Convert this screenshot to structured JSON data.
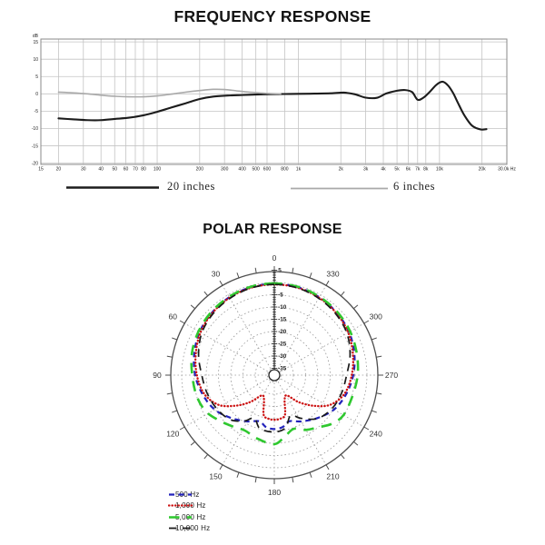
{
  "chart_data": [
    {
      "type": "line",
      "title": "FREQUENCY RESPONSE",
      "x_scale": "log",
      "x_unit": "Hz",
      "ylabel": "dB",
      "xlim": [
        15,
        30000
      ],
      "ylim": [
        -20.5,
        16.5
      ],
      "grid": true,
      "y_ticks": [
        [
          15,
          "15"
        ],
        [
          10,
          "10"
        ],
        [
          5,
          "5"
        ],
        [
          0,
          "0"
        ],
        [
          -5,
          "-5"
        ],
        [
          -10,
          "-10"
        ],
        [
          -15,
          "-15"
        ],
        [
          -20,
          "-20"
        ]
      ],
      "x_gridlines": [
        20,
        30,
        40,
        50,
        60,
        70,
        80,
        100,
        200,
        300,
        400,
        500,
        600,
        800,
        1000,
        2000,
        3000,
        4000,
        5000,
        6000,
        7000,
        8000,
        10000,
        20000
      ],
      "x_tick_labels": [
        [
          15,
          "15"
        ],
        [
          20,
          "20"
        ],
        [
          30,
          "30"
        ],
        [
          40,
          "40"
        ],
        [
          50,
          "50"
        ],
        [
          60,
          "60"
        ],
        [
          70,
          "70"
        ],
        [
          80,
          "80"
        ],
        [
          100,
          "100"
        ],
        [
          200,
          "200"
        ],
        [
          300,
          "300"
        ],
        [
          400,
          "400"
        ],
        [
          500,
          "500"
        ],
        [
          600,
          "600"
        ],
        [
          800,
          "800"
        ],
        [
          1000,
          "1k"
        ],
        [
          2000,
          "2k"
        ],
        [
          3000,
          "3k"
        ],
        [
          4000,
          "4k"
        ],
        [
          5000,
          "5k"
        ],
        [
          6000,
          "6k"
        ],
        [
          7000,
          "7k"
        ],
        [
          8000,
          "8k"
        ],
        [
          10000,
          "10k"
        ],
        [
          20000,
          "20k"
        ],
        [
          30000,
          "30.0k Hz"
        ]
      ],
      "colors": {
        "grid": "#c4c4c4",
        "frame": "#8a8a8a",
        "tick_text": "#222222"
      },
      "legend_position": "below",
      "series": [
        {
          "name": "20 inches",
          "color": "#1c1c1c",
          "width": 2.1,
          "points": [
            [
              20,
              -7.1
            ],
            [
              25,
              -7.35
            ],
            [
              32,
              -7.6
            ],
            [
              40,
              -7.6
            ],
            [
              50,
              -7.25
            ],
            [
              63,
              -6.9
            ],
            [
              80,
              -6.2
            ],
            [
              100,
              -5.2
            ],
            [
              125,
              -4.0
            ],
            [
              160,
              -2.7
            ],
            [
              200,
              -1.5
            ],
            [
              250,
              -0.8
            ],
            [
              315,
              -0.5
            ],
            [
              400,
              -0.35
            ],
            [
              500,
              -0.2
            ],
            [
              630,
              -0.1
            ],
            [
              800,
              -0.05
            ],
            [
              1000,
              0
            ],
            [
              1300,
              0.05
            ],
            [
              1700,
              0.15
            ],
            [
              2100,
              0.35
            ],
            [
              2500,
              -0.1
            ],
            [
              3000,
              -1.1
            ],
            [
              3600,
              -1.15
            ],
            [
              4200,
              0.1
            ],
            [
              5000,
              0.9
            ],
            [
              5700,
              1.1
            ],
            [
              6400,
              0.5
            ],
            [
              7000,
              -1.7
            ],
            [
              7700,
              -1.1
            ],
            [
              8500,
              0.5
            ],
            [
              9500,
              2.6
            ],
            [
              10500,
              3.5
            ],
            [
              11500,
              2.4
            ],
            [
              12500,
              0.2
            ],
            [
              13500,
              -2.6
            ],
            [
              15000,
              -6.2
            ],
            [
              17000,
              -9.2
            ],
            [
              19500,
              -10.3
            ],
            [
              21500,
              -10.2
            ]
          ]
        },
        {
          "name": "6 inches",
          "color": "#a9a9a9",
          "width": 1.6,
          "points": [
            [
              20,
              0.5
            ],
            [
              25,
              0.3
            ],
            [
              32,
              0.0
            ],
            [
              40,
              -0.4
            ],
            [
              50,
              -0.7
            ],
            [
              63,
              -0.85
            ],
            [
              80,
              -0.85
            ],
            [
              100,
              -0.6
            ],
            [
              125,
              -0.1
            ],
            [
              160,
              0.5
            ],
            [
              200,
              0.95
            ],
            [
              250,
              1.3
            ],
            [
              300,
              1.25
            ],
            [
              360,
              0.9
            ],
            [
              430,
              0.55
            ],
            [
              520,
              0.3
            ],
            [
              620,
              0.1
            ],
            [
              750,
              0.0
            ]
          ]
        }
      ]
    },
    {
      "type": "polar",
      "title": "POLAR RESPONSE",
      "radial_unit": "dB",
      "outer_db": 5,
      "center_db": -38.8,
      "ring_dbs": [
        0,
        -5,
        -10,
        -15,
        -20,
        -25,
        -30,
        -35
      ],
      "radial_tick_labels": [
        [
          5,
          "5"
        ],
        [
          -5,
          "-5"
        ],
        [
          -10,
          "-10"
        ],
        [
          -15,
          "-15"
        ],
        [
          -20,
          "-20"
        ],
        [
          -25,
          "-25"
        ],
        [
          -30,
          "-30"
        ],
        [
          -35,
          "-35"
        ]
      ],
      "angle_labels": [
        [
          0,
          "0"
        ],
        [
          30,
          "30"
        ],
        [
          60,
          "60"
        ],
        [
          90,
          "90"
        ],
        [
          120,
          "120"
        ],
        [
          150,
          "150"
        ],
        [
          180,
          "180"
        ],
        [
          210,
          "210"
        ],
        [
          240,
          "240"
        ],
        [
          270,
          "270"
        ],
        [
          300,
          "300"
        ],
        [
          330,
          "330"
        ]
      ],
      "angle_tick_step": 10,
      "radial_line_step": 30,
      "colors": {
        "grid": "#9a9a9a",
        "circle": "#4d4d4d",
        "axis": "#222222",
        "label_text": "#333333"
      },
      "series": [
        {
          "name": "500 Hz",
          "color": "#2222bb",
          "dash": "6 4.5",
          "width": 2.2,
          "cap": "butt",
          "points": [
            [
              0,
              -0.6
            ],
            [
              15,
              -0.7
            ],
            [
              30,
              -1.1
            ],
            [
              45,
              -1.8
            ],
            [
              60,
              -2.6
            ],
            [
              75,
              -4.0
            ],
            [
              90,
              -5.5
            ],
            [
              105,
              -7.5
            ],
            [
              120,
              -9.7
            ],
            [
              135,
              -13.0
            ],
            [
              150,
              -16.0
            ],
            [
              162,
              -18.0
            ],
            [
              171,
              -16.3
            ],
            [
              180,
              -15.8
            ],
            [
              189,
              -16.3
            ],
            [
              198,
              -18.0
            ],
            [
              210,
              -16.0
            ],
            [
              225,
              -13.0
            ],
            [
              240,
              -9.7
            ],
            [
              255,
              -7.5
            ],
            [
              270,
              -5.6
            ],
            [
              285,
              -4.0
            ],
            [
              300,
              -2.6
            ],
            [
              315,
              -1.8
            ],
            [
              330,
              -1.1
            ],
            [
              345,
              -0.7
            ]
          ]
        },
        {
          "name": "1,000 Hz",
          "color": "#cc1212",
          "dash": "0.4 3.1",
          "width": 2.3,
          "cap": "round",
          "points": [
            [
              0,
              -0.8
            ],
            [
              15,
              -0.9
            ],
            [
              30,
              -1.3
            ],
            [
              45,
              -2.0
            ],
            [
              60,
              -3.0
            ],
            [
              75,
              -4.6
            ],
            [
              90,
              -6.2
            ],
            [
              105,
              -8.2
            ],
            [
              118,
              -12.0
            ],
            [
              128,
              -17.5
            ],
            [
              138,
              -23.0
            ],
            [
              148,
              -28.0
            ],
            [
              157,
              -27.0
            ],
            [
              165,
              -21.0
            ],
            [
              173,
              -19.8
            ],
            [
              180,
              -19.6
            ],
            [
              187,
              -19.8
            ],
            [
              195,
              -21.0
            ],
            [
              203,
              -27.0
            ],
            [
              212,
              -28.0
            ],
            [
              222,
              -23.0
            ],
            [
              232,
              -17.5
            ],
            [
              242,
              -12.0
            ],
            [
              255,
              -8.2
            ],
            [
              270,
              -6.2
            ],
            [
              285,
              -4.6
            ],
            [
              300,
              -3.0
            ],
            [
              315,
              -2.0
            ],
            [
              330,
              -1.3
            ],
            [
              345,
              -0.9
            ]
          ]
        },
        {
          "name": "5,000 Hz",
          "color": "#2fc82f",
          "dash": "11.5 8.5",
          "width": 2.6,
          "cap": "butt",
          "points": [
            [
              0,
              -0.4
            ],
            [
              15,
              -0.5
            ],
            [
              30,
              -0.9
            ],
            [
              45,
              -1.4
            ],
            [
              60,
              -2.1
            ],
            [
              75,
              -3.0
            ],
            [
              90,
              -4.3
            ],
            [
              105,
              -5.0
            ],
            [
              118,
              -6.2
            ],
            [
              130,
              -8.8
            ],
            [
              142,
              -11.0
            ],
            [
              152,
              -12.2
            ],
            [
              165,
              -11.0
            ],
            [
              180,
              -9.6
            ],
            [
              190,
              -12.5
            ],
            [
              200,
              -14.5
            ],
            [
              210,
              -12.0
            ],
            [
              220,
              -10.0
            ],
            [
              230,
              -7.0
            ],
            [
              240,
              -5.2
            ],
            [
              255,
              -4.8
            ],
            [
              270,
              -3.8
            ],
            [
              285,
              -3.0
            ],
            [
              300,
              -2.1
            ],
            [
              315,
              -1.4
            ],
            [
              330,
              -0.9
            ],
            [
              345,
              -0.5
            ]
          ]
        },
        {
          "name": "10,000 Hz",
          "color": "#1a1a1a",
          "dash": "8.5 6.5",
          "width": 1.7,
          "cap": "butt",
          "points": [
            [
              0,
              -0.8
            ],
            [
              15,
              -1.0
            ],
            [
              30,
              -1.6
            ],
            [
              45,
              -2.4
            ],
            [
              60,
              -3.6
            ],
            [
              75,
              -5.8
            ],
            [
              90,
              -8.2
            ],
            [
              105,
              -9.4
            ],
            [
              120,
              -10.6
            ],
            [
              135,
              -12.2
            ],
            [
              147,
              -15.5
            ],
            [
              155,
              -18.5
            ],
            [
              165,
              -15.2
            ],
            [
              180,
              -14.6
            ],
            [
              192,
              -15.8
            ],
            [
              202,
              -20.0
            ],
            [
              212,
              -17.0
            ],
            [
              225,
              -12.8
            ],
            [
              240,
              -10.6
            ],
            [
              255,
              -9.4
            ],
            [
              270,
              -8.3
            ],
            [
              285,
              -5.8
            ],
            [
              300,
              -3.6
            ],
            [
              315,
              -2.4
            ],
            [
              330,
              -1.6
            ],
            [
              345,
              -1.0
            ]
          ]
        }
      ]
    }
  ]
}
